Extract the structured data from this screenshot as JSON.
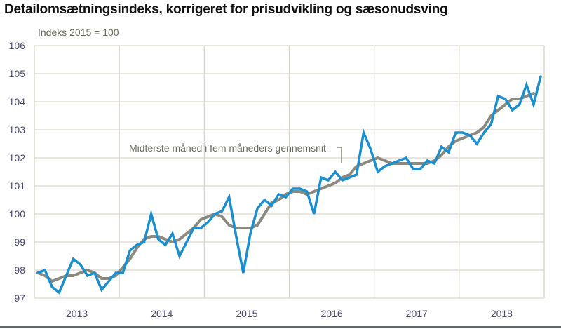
{
  "header": {
    "title": "Detailomsætningsindeks, korrigeret for prisudvikling og sæsonudsving",
    "unit_label": "Indeks 2015 = 100"
  },
  "annotation": "Midterste måned i fem måneders gennemsnit",
  "colors": {
    "index_line": "#1a8fd0",
    "moving_average_line": "#8c8a7e",
    "grid": "#d9d7cc",
    "tick_text": "#4a4a7a"
  },
  "chart_data": {
    "type": "line",
    "title": "Detailomsætningsindeks, korrigeret for prisudvikling og sæsonudsving",
    "subtitle": "Indeks 2015 = 100",
    "xlabel": "",
    "ylabel": "Indeks 2015 = 100",
    "ylim": [
      97,
      106
    ],
    "yticks": [
      97,
      98,
      99,
      100,
      101,
      102,
      103,
      104,
      105,
      106
    ],
    "xticks": [
      "2013",
      "2014",
      "2015",
      "2016",
      "2017",
      "2018"
    ],
    "grid": true,
    "legend_position": "none (inline annotation)",
    "x": [
      "2013M01",
      "2013M02",
      "2013M03",
      "2013M04",
      "2013M05",
      "2013M06",
      "2013M07",
      "2013M08",
      "2013M09",
      "2013M10",
      "2013M11",
      "2013M12",
      "2014M01",
      "2014M02",
      "2014M03",
      "2014M04",
      "2014M05",
      "2014M06",
      "2014M07",
      "2014M08",
      "2014M09",
      "2014M10",
      "2014M11",
      "2014M12",
      "2015M01",
      "2015M02",
      "2015M03",
      "2015M04",
      "2015M05",
      "2015M06",
      "2015M07",
      "2015M08",
      "2015M09",
      "2015M10",
      "2015M11",
      "2015M12",
      "2016M01",
      "2016M02",
      "2016M03",
      "2016M04",
      "2016M05",
      "2016M06",
      "2016M07",
      "2016M08",
      "2016M09",
      "2016M10",
      "2016M11",
      "2016M12",
      "2017M01",
      "2017M02",
      "2017M03",
      "2017M04",
      "2017M05",
      "2017M06",
      "2017M07",
      "2017M08",
      "2017M09",
      "2017M10",
      "2017M11",
      "2017M12",
      "2018M01",
      "2018M02",
      "2018M03",
      "2018M04",
      "2018M05",
      "2018M06",
      "2018M07",
      "2018M08",
      "2018M09",
      "2018M10",
      "2018M11",
      "2018M12"
    ],
    "series": [
      {
        "name": "Detailomsætningsindeks",
        "color": "#1a8fd0",
        "values": [
          97.9,
          98.0,
          97.4,
          97.2,
          97.8,
          98.4,
          98.2,
          97.8,
          97.9,
          97.3,
          97.6,
          97.9,
          97.9,
          98.7,
          98.9,
          99.0,
          100.0,
          99.1,
          98.9,
          99.3,
          98.5,
          99.0,
          99.5,
          99.5,
          99.7,
          100.0,
          100.1,
          100.6,
          99.2,
          97.9,
          99.3,
          100.2,
          100.5,
          100.3,
          100.7,
          100.6,
          100.9,
          100.9,
          100.8,
          100.0,
          101.3,
          101.2,
          101.5,
          101.2,
          101.3,
          101.4,
          102.9,
          102.3,
          101.5,
          101.7,
          101.8,
          101.9,
          102.0,
          101.6,
          101.6,
          101.9,
          101.8,
          102.4,
          102.2,
          102.9,
          102.9,
          102.8,
          102.5,
          102.9,
          103.2,
          104.2,
          104.1,
          103.7,
          103.9,
          104.6,
          103.9,
          104.9
        ]
      },
      {
        "name": "Midterste måned i fem måneders gennemsnit",
        "color": "#8c8a7e",
        "values": [
          97.9,
          97.8,
          97.6,
          97.7,
          97.8,
          97.8,
          97.9,
          98.0,
          97.9,
          97.7,
          97.7,
          97.8,
          98.1,
          98.4,
          98.8,
          99.1,
          99.2,
          99.2,
          99.1,
          99.0,
          99.1,
          99.3,
          99.5,
          99.8,
          99.9,
          100.0,
          99.9,
          99.6,
          99.5,
          99.5,
          99.5,
          99.6,
          100.0,
          100.4,
          100.5,
          100.7,
          100.8,
          100.8,
          100.7,
          100.8,
          100.9,
          101.0,
          101.1,
          101.3,
          101.4,
          101.7,
          101.8,
          101.9,
          102.0,
          101.9,
          101.8,
          101.8,
          101.8,
          101.8,
          101.8,
          101.8,
          101.9,
          102.1,
          102.4,
          102.6,
          102.7,
          102.8,
          102.9,
          103.1,
          103.5,
          103.7,
          103.9,
          104.1,
          104.1,
          104.2,
          104.3,
          null
        ]
      }
    ]
  }
}
